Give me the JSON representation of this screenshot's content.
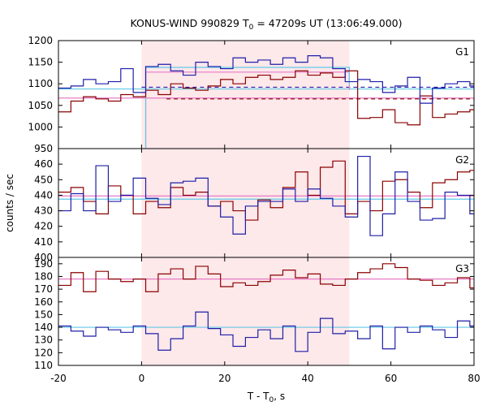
{
  "title_prefix": "KONUS-WIND 990829 T",
  "title_sub": "0",
  "title_suffix": " = 47209s UT (13:06:49.000)",
  "ylabel": "counts / sec",
  "xlabel_prefix": "T - T",
  "xlabel_sub": "0",
  "xlabel_suffix": ", s",
  "x_ticks": [
    "-20",
    "0",
    "20",
    "40",
    "60",
    "80"
  ],
  "colors": {
    "red": "#8b0000",
    "blue": "#1f1fa8",
    "pink": "#e67bc6",
    "cyan": "#62c8e8",
    "shade": "#fde8ea"
  },
  "chart_data": [
    {
      "type": "line",
      "panel_label": "G1",
      "xlim": [
        -20,
        80
      ],
      "ylim": [
        950,
        1200
      ],
      "y_ticks": [
        "1200",
        "1150",
        "1100",
        "1050",
        "1000",
        "950"
      ],
      "shaded_interval": [
        0,
        50
      ],
      "bin_edges": [
        -20,
        -17,
        -14,
        -11,
        -8,
        -5,
        -2,
        1,
        4,
        7,
        10,
        13,
        16,
        19,
        22,
        25,
        28,
        31,
        34,
        37,
        40,
        43,
        46,
        49,
        52,
        55,
        58,
        61,
        64,
        67,
        70,
        73,
        76,
        79,
        80
      ],
      "series": [
        {
          "color": "red",
          "values": [
            1035,
            1060,
            1070,
            1065,
            1060,
            1075,
            1070,
            1085,
            1075,
            1100,
            1090,
            1085,
            1095,
            1110,
            1100,
            1115,
            1120,
            1110,
            1115,
            1130,
            1120,
            1125,
            1115,
            1130,
            1020,
            1022,
            1040,
            1010,
            1005,
            1072,
            1022,
            1030,
            1035,
            1040
          ]
        },
        {
          "color": "blue",
          "values": [
            1090,
            1095,
            1110,
            1100,
            1105,
            1135,
            1080,
            1140,
            1145,
            1130,
            1120,
            1150,
            1140,
            1135,
            1160,
            1150,
            1155,
            1145,
            1160,
            1150,
            1165,
            1160,
            1135,
            1105,
            1110,
            1105,
            1080,
            1095,
            1115,
            1055,
            1090,
            1100,
            1105,
            1095
          ]
        }
      ],
      "reference_lines": [
        {
          "color": "pink",
          "style": "solid",
          "y": 1067,
          "from": -20,
          "to": 80
        },
        {
          "color": "cyan",
          "style": "solid",
          "y": 1088,
          "from": -20,
          "to": 80
        },
        {
          "color": "blue",
          "style": "dashed",
          "y": 1092,
          "from": 0,
          "to": 80
        },
        {
          "color": "red",
          "style": "dashed",
          "y": 1065,
          "from": 6,
          "to": 80
        },
        {
          "color": "pink",
          "style": "box",
          "y": 1127,
          "from": 1,
          "to": 50
        },
        {
          "color": "cyan",
          "style": "box",
          "y": 1138,
          "from": 1,
          "to": 50
        }
      ]
    },
    {
      "type": "line",
      "panel_label": "G2",
      "xlim": [
        -20,
        80
      ],
      "ylim": [
        400,
        470
      ],
      "y_ticks": [
        "460",
        "450",
        "440",
        "430",
        "420",
        "410",
        "400"
      ],
      "shaded_interval": [
        0,
        50
      ],
      "bin_edges": [
        -20,
        -17,
        -14,
        -11,
        -8,
        -5,
        -2,
        1,
        4,
        7,
        10,
        13,
        16,
        19,
        22,
        25,
        28,
        31,
        34,
        37,
        40,
        43,
        46,
        49,
        52,
        55,
        58,
        61,
        64,
        67,
        70,
        73,
        76,
        79,
        80
      ],
      "series": [
        {
          "color": "red",
          "values": [
            442,
            445,
            436,
            428,
            446,
            440,
            428,
            436,
            432,
            445,
            440,
            442,
            433,
            436,
            430,
            424,
            437,
            432,
            445,
            455,
            440,
            458,
            462,
            428,
            436,
            430,
            449,
            450,
            442,
            432,
            448,
            450,
            455,
            456
          ]
        },
        {
          "color": "blue",
          "values": [
            430,
            441,
            430,
            459,
            436,
            440,
            451,
            438,
            434,
            448,
            449,
            451,
            433,
            426,
            415,
            433,
            436,
            436,
            444,
            436,
            444,
            438,
            433,
            426,
            465,
            414,
            428,
            455,
            436,
            424,
            425,
            442,
            440,
            428
          ]
        }
      ],
      "reference_lines": [
        {
          "color": "pink",
          "style": "solid",
          "y": 439.5,
          "from": -20,
          "to": 80
        },
        {
          "color": "cyan",
          "style": "solid",
          "y": 437.5,
          "from": -20,
          "to": 80
        }
      ]
    },
    {
      "type": "line",
      "panel_label": "G3",
      "xlim": [
        -20,
        80
      ],
      "ylim": [
        110,
        195
      ],
      "y_ticks": [
        "190",
        "180",
        "170",
        "160",
        "150",
        "140",
        "130",
        "120",
        "110"
      ],
      "shaded_interval": [
        0,
        50
      ],
      "bin_edges": [
        -20,
        -17,
        -14,
        -11,
        -8,
        -5,
        -2,
        1,
        4,
        7,
        10,
        13,
        16,
        19,
        22,
        25,
        28,
        31,
        34,
        37,
        40,
        43,
        46,
        49,
        52,
        55,
        58,
        61,
        64,
        67,
        70,
        73,
        76,
        79,
        80
      ],
      "series": [
        {
          "color": "red",
          "values": [
            173,
            183,
            168,
            184,
            178,
            176,
            178,
            168,
            182,
            186,
            178,
            188,
            182,
            172,
            175,
            173,
            176,
            181,
            185,
            179,
            182,
            174,
            173,
            178,
            183,
            186,
            190,
            187,
            178,
            177,
            173,
            175,
            179,
            171
          ]
        },
        {
          "color": "blue",
          "values": [
            141,
            137,
            133,
            140,
            138,
            136,
            141,
            135,
            122,
            131,
            141,
            152,
            139,
            134,
            125,
            132,
            138,
            131,
            141,
            121,
            136,
            147,
            135,
            137,
            131,
            141,
            123,
            140,
            136,
            141,
            138,
            132,
            145,
            141
          ]
        }
      ],
      "reference_lines": [
        {
          "color": "pink",
          "style": "solid",
          "y": 178,
          "from": -20,
          "to": 80
        },
        {
          "color": "cyan",
          "style": "solid",
          "y": 140,
          "from": -20,
          "to": 80
        }
      ]
    }
  ]
}
